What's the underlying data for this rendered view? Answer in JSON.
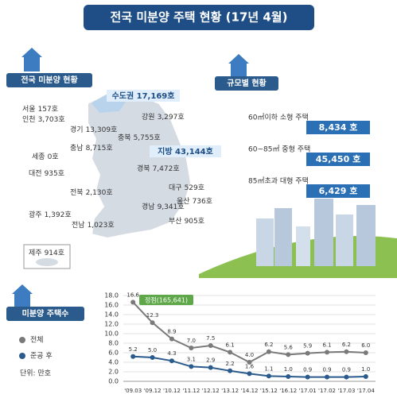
{
  "header": {
    "title": "전국 미분양 주택 현황 (17년 4월)"
  },
  "regional": {
    "title": "전국 미분양 현황",
    "capital_area": "수도권 17,169호",
    "provinces": "지방 43,144호",
    "regions": [
      {
        "name": "서울",
        "count": "157호"
      },
      {
        "name": "인천",
        "count": "3,703호"
      },
      {
        "name": "경기",
        "count": "13,309호"
      },
      {
        "name": "강원",
        "count": "3,297호"
      },
      {
        "name": "충북",
        "count": "5,755호"
      },
      {
        "name": "세종",
        "count": "0호"
      },
      {
        "name": "충남",
        "count": "8,715호"
      },
      {
        "name": "대전",
        "count": "935호"
      },
      {
        "name": "경북",
        "count": "7,472호"
      },
      {
        "name": "대구",
        "count": "529호"
      },
      {
        "name": "전북",
        "count": "2,130호"
      },
      {
        "name": "울산",
        "count": "736호"
      },
      {
        "name": "경남",
        "count": "9,341호"
      },
      {
        "name": "광주",
        "count": "1,392호"
      },
      {
        "name": "전남",
        "count": "1,023호"
      },
      {
        "name": "부산",
        "count": "905호"
      },
      {
        "name": "제주",
        "count": "914호"
      }
    ]
  },
  "by_size": {
    "title": "규모별 현황",
    "rows": [
      {
        "label": "60㎡이하 소형 주택",
        "count": "8,434 호"
      },
      {
        "label": "60~85㎡ 중형 주택",
        "count": "45,450 호"
      },
      {
        "label": "85㎡초과 대형 주택",
        "count": "6,429 호"
      }
    ]
  },
  "chart_data": {
    "type": "line",
    "title": "미분양 주택수",
    "unit": "단위: 만호",
    "annotation": "정점(165,641)",
    "categories": [
      "'09.03",
      "'09.12",
      "'10.12",
      "'11.12",
      "'12.12",
      "'13.12",
      "'14.12",
      "'15.12",
      "'16.12",
      "'17.01",
      "'17.02",
      "'17.03",
      "'17.04"
    ],
    "series": [
      {
        "name": "전체",
        "color": "#7a7a7a",
        "values": [
          16.6,
          12.3,
          8.9,
          7.0,
          7.5,
          6.1,
          4.0,
          6.2,
          5.6,
          5.9,
          6.1,
          6.2,
          6.0
        ],
        "value_labels": [
          "16.6",
          "12.3",
          "8.9",
          "7.0",
          "7.5",
          "6.1",
          "4.0",
          "6.2",
          "5.6",
          "5.9",
          "6.1",
          "6.2",
          "6.0"
        ]
      },
      {
        "name": "준공 후",
        "color": "#2b5a8c",
        "values": [
          5.2,
          5.0,
          4.3,
          3.1,
          2.9,
          2.2,
          1.6,
          1.1,
          1.0,
          0.9,
          0.9,
          0.9,
          1.0
        ],
        "value_labels": [
          "5.2",
          "5.0",
          "4.3",
          "3.1",
          "2.9",
          "2.2",
          "1.6",
          "1.1",
          "1.0",
          "0.9",
          "0.9",
          "0.9",
          "1.0"
        ]
      }
    ],
    "ylim": [
      0,
      18
    ],
    "yticks": [
      {
        "value": 0,
        "label": "0.0"
      },
      {
        "value": 2,
        "label": "2.0"
      },
      {
        "value": 4,
        "label": "4.0"
      },
      {
        "value": 6,
        "label": "6.0"
      },
      {
        "value": 8,
        "label": "8.0"
      },
      {
        "value": 10,
        "label": "10.0"
      },
      {
        "value": 12,
        "label": "12.0"
      },
      {
        "value": 14,
        "label": "14.0"
      },
      {
        "value": 16,
        "label": "16.0"
      },
      {
        "value": 18,
        "label": "18.0"
      }
    ],
    "grid": true
  }
}
